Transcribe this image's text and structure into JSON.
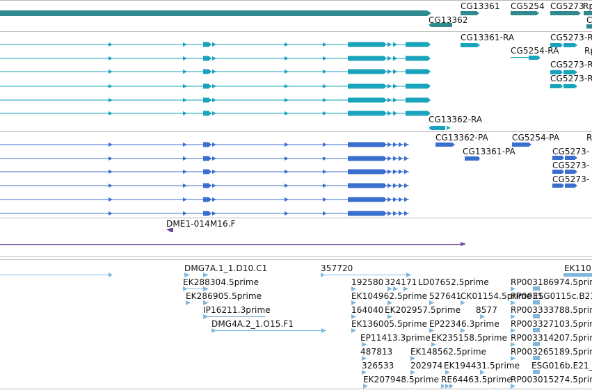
{
  "colors": {
    "gene_teal": "#2e8a8e",
    "transcript_cyan": "#1aa3bd",
    "cds_blue": "#3a6ecf",
    "est_purple": "#6a4a9c",
    "cdna_lightblue": "#7fb8dd",
    "divider": "#b8b8b8"
  },
  "gene_track": {
    "labels": [
      {
        "text": "CG13361"
      },
      {
        "text": "CG5254"
      },
      {
        "text": "CG5273"
      },
      {
        "text": "Rp"
      },
      {
        "text": "C"
      },
      {
        "text": "CG13362"
      }
    ]
  },
  "transcript_track": {
    "labels": [
      {
        "text": "CG13361-RA"
      },
      {
        "text": "CG5273-R"
      },
      {
        "text": "CG5254-RA"
      },
      {
        "text": "Rp"
      },
      {
        "text": "CG5273-R"
      },
      {
        "text": "CG5273-R"
      },
      {
        "text": "CG13362-RA"
      }
    ]
  },
  "cds_track": {
    "labels": [
      {
        "text": "CG13362-PA"
      },
      {
        "text": "CG5254-PA"
      },
      {
        "text": "R"
      },
      {
        "text": "CG13361-PA"
      },
      {
        "text": "CG5273-"
      },
      {
        "text": "CG5273-"
      },
      {
        "text": "CG5273-"
      }
    ]
  },
  "est_track": {
    "labels": [
      {
        "text": "DME1-014M16.F"
      }
    ]
  },
  "cdna_track": {
    "labels": [
      {
        "text": "DMG7A.1_1.D10.C1"
      },
      {
        "text": "357720"
      },
      {
        "text": "EK110"
      },
      {
        "text": "EK288304.5prime"
      },
      {
        "text": "192580"
      },
      {
        "text": "324171"
      },
      {
        "text": "LD07652.5prime"
      },
      {
        "text": "RP003186974.5prime"
      },
      {
        "text": "EK286905.5prime"
      },
      {
        "text": "EK104962.5prime"
      },
      {
        "text": "527641"
      },
      {
        "text": "CK01154.5prime"
      },
      {
        "text": "RP0031"
      },
      {
        "text": "ESG0115c.B21"
      },
      {
        "text": "IP16211.3prime"
      },
      {
        "text": "164040"
      },
      {
        "text": "EK202957.5prime"
      },
      {
        "text": "8577"
      },
      {
        "text": "RP003333788.5prime"
      },
      {
        "text": "DMG4A.2_1.O15.F1"
      },
      {
        "text": "EK136005.5prime"
      },
      {
        "text": "EP22346.3prime"
      },
      {
        "text": "RP003327103.5prime"
      },
      {
        "text": "EP11413.3prime"
      },
      {
        "text": "EK235158.5prime"
      },
      {
        "text": "RP003314207.5prime"
      },
      {
        "text": "487813"
      },
      {
        "text": "EK148562.5prime"
      },
      {
        "text": "RP003265189.5prime"
      },
      {
        "text": "326533"
      },
      {
        "text": "202974"
      },
      {
        "text": "EK194431.5prime"
      },
      {
        "text": "ESG016b.E21_"
      },
      {
        "text": "EK207948.5prime"
      },
      {
        "text": "RE64463.5prime"
      },
      {
        "text": "RP003015274.5prime"
      }
    ]
  }
}
